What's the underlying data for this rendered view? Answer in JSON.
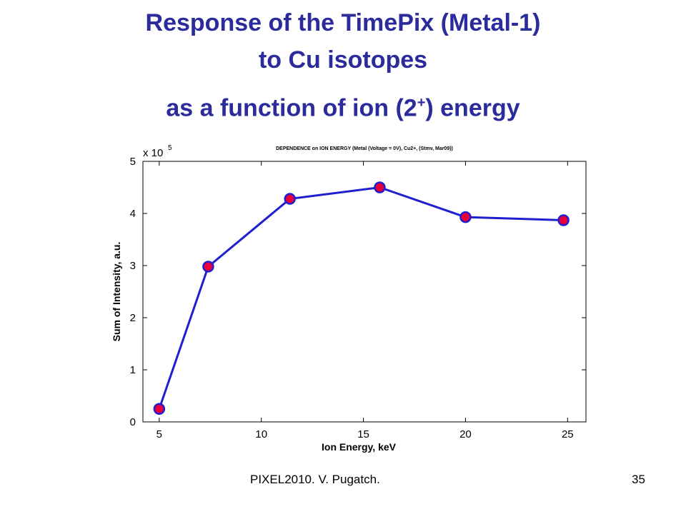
{
  "slide": {
    "title_line1": "Response of the TimePix (Metal-1)",
    "title_line2": "to Cu isotopes",
    "title_line3_prefix": "as a function of  ion (2",
    "title_line3_sup": "+",
    "title_line3_suffix": ") energy",
    "footer_left": "PIXEL2010. V. Pugatch.",
    "page_number": "35"
  },
  "colors": {
    "title": "#2b2b9b",
    "line": "#1f1fd0",
    "marker_fill": "#e8003a",
    "marker_edge": "#1f1fd0"
  },
  "chart_data": {
    "type": "line",
    "title": "DEPENDENCE on ION ENERGY (Metal (Voltage = 0V), Cu2+, (Stmv, Mar09))",
    "xlabel": "Ion Energy, keV",
    "ylabel": "Sum of Intensity, a.u.",
    "y_multiplier_label": "x 10",
    "y_multiplier_exp": "5",
    "xlim": [
      4.2,
      25.9
    ],
    "ylim": [
      0,
      5
    ],
    "xticks": [
      5,
      10,
      15,
      20,
      25
    ],
    "yticks": [
      0,
      1,
      2,
      3,
      4,
      5
    ],
    "grid": false,
    "series": [
      {
        "x": [
          5,
          7.4,
          11.4,
          15.8,
          20,
          24.8
        ],
        "y": [
          0.25,
          2.98,
          4.28,
          4.5,
          3.93,
          3.87
        ]
      }
    ]
  }
}
